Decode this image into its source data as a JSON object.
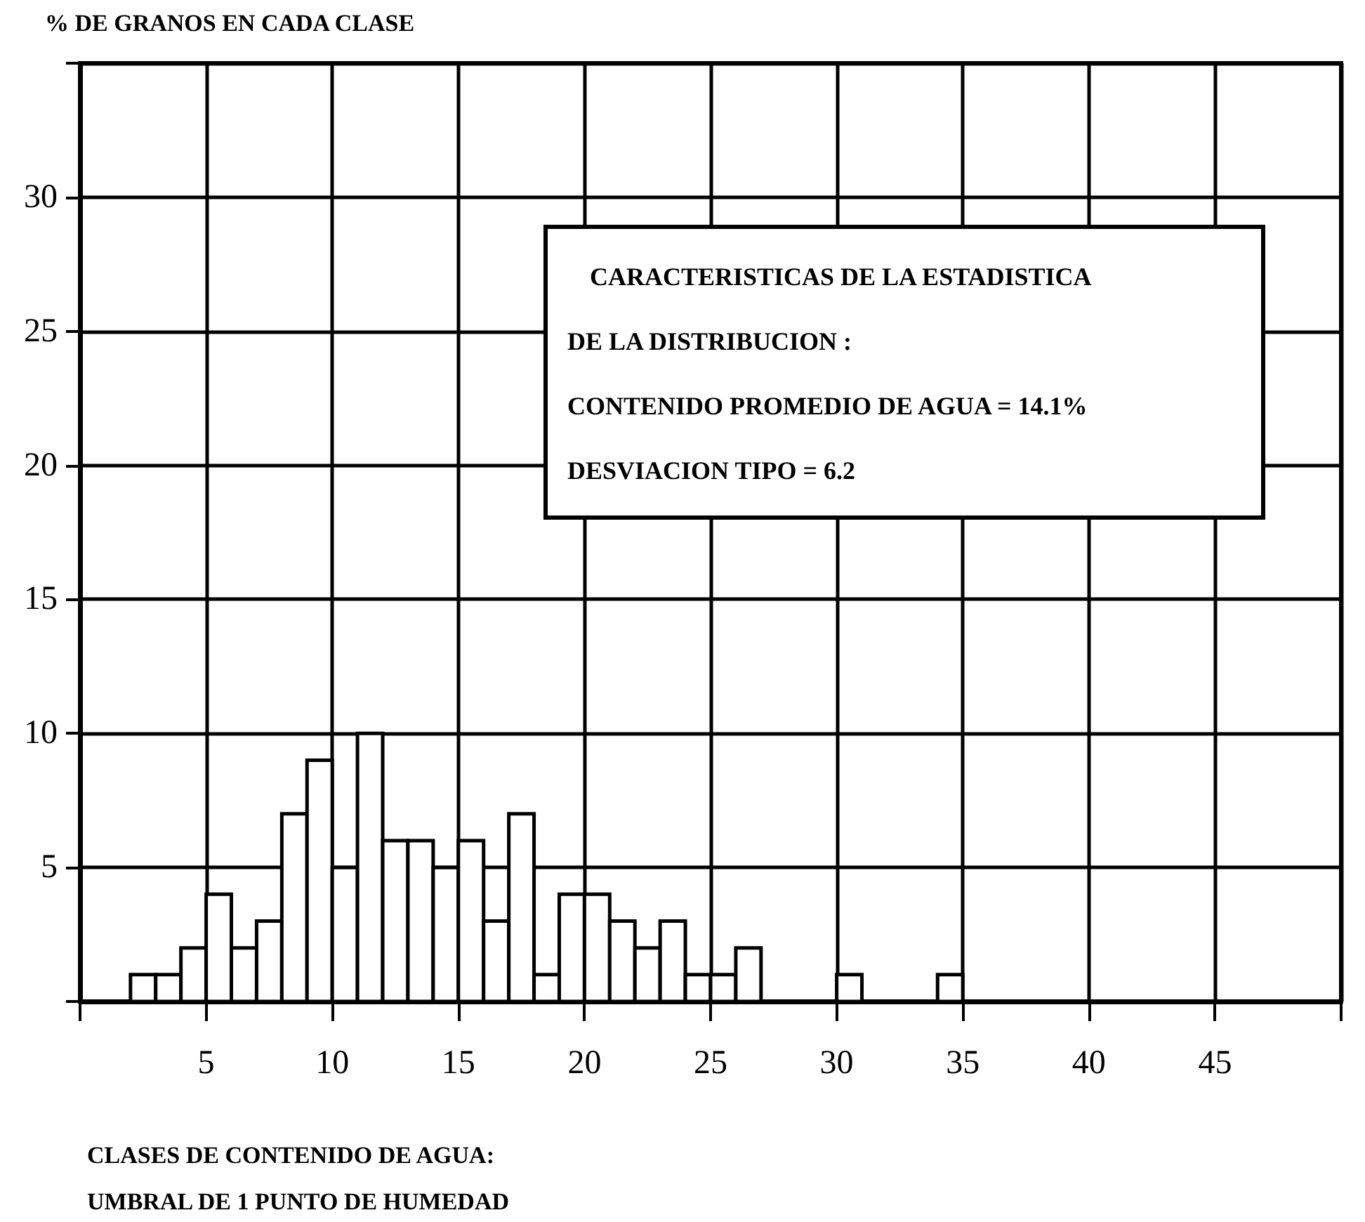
{
  "chart_data": {
    "type": "histogram",
    "ylabel": "% DE GRANOS EN CADA CLASE",
    "xlabel": "CLASES DE CONTENIDO DE AGUA:\nUMBRAL DE 1 PUNTO DE HUMEDAD",
    "annotations": [
      "CARACTERISTICAS DE LA ESTADISTICA",
      "DE LA DISTRIBUCION :",
      "CONTENIDO PROMEDIO DE AGUA = 14.1%",
      "DESVIACION TIPO = 6.2"
    ],
    "bins": [
      2,
      3,
      4,
      5,
      6,
      7,
      8,
      9,
      10,
      11,
      12,
      13,
      14,
      15,
      16,
      17,
      18,
      19,
      20,
      21,
      22,
      23,
      24,
      25,
      26,
      27,
      28,
      29,
      30,
      31,
      32,
      33,
      34,
      35
    ],
    "values": [
      1,
      1,
      2,
      4,
      2,
      3,
      7,
      9,
      5,
      10,
      6,
      6,
      5,
      6,
      3,
      7,
      1,
      4,
      4,
      3,
      2,
      3,
      1,
      1,
      2,
      0,
      0,
      0,
      1,
      0,
      0,
      0,
      1
    ],
    "color": "#ffffff",
    "xlim": [
      0,
      50
    ],
    "xticks": [
      5,
      10,
      15,
      20,
      25,
      30,
      35,
      40,
      45
    ],
    "ylim": [
      0,
      35
    ],
    "yticks": [
      5,
      10,
      15,
      20,
      25,
      30
    ],
    "grid": true
  }
}
